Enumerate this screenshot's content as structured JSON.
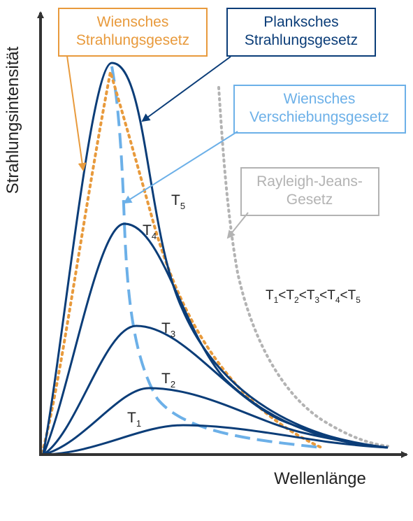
{
  "colors": {
    "planck": "#0b3d78",
    "wien_law": "#e89a3c",
    "displacement": "#6cb0e8",
    "rayleigh": "#b3b3b3",
    "axis": "#333333",
    "text": "#222222"
  },
  "axes": {
    "x_label": "Wellenlänge",
    "y_label": "Strahlungsintensität"
  },
  "boxes": {
    "wien_law": [
      "Wiensches",
      "Strahlungsgesetz"
    ],
    "planck": [
      "Planksches",
      "Strahlungsgesetz"
    ],
    "displacement": [
      "Wiensches",
      "Verschiebungsgesetz"
    ],
    "rayleigh": [
      "Rayleigh-Jeans-",
      "Gesetz"
    ]
  },
  "curve_labels": {
    "t1": {
      "base": "T",
      "sub": "1"
    },
    "t2": {
      "base": "T",
      "sub": "2"
    },
    "t3": {
      "base": "T",
      "sub": "3"
    },
    "t4": {
      "base": "T",
      "sub": "4"
    },
    "t5": {
      "base": "T",
      "sub": "5"
    }
  },
  "inequality": {
    "base": "T",
    "subs": [
      "1",
      "2",
      "3",
      "4",
      "5"
    ],
    "sep": "<"
  }
}
